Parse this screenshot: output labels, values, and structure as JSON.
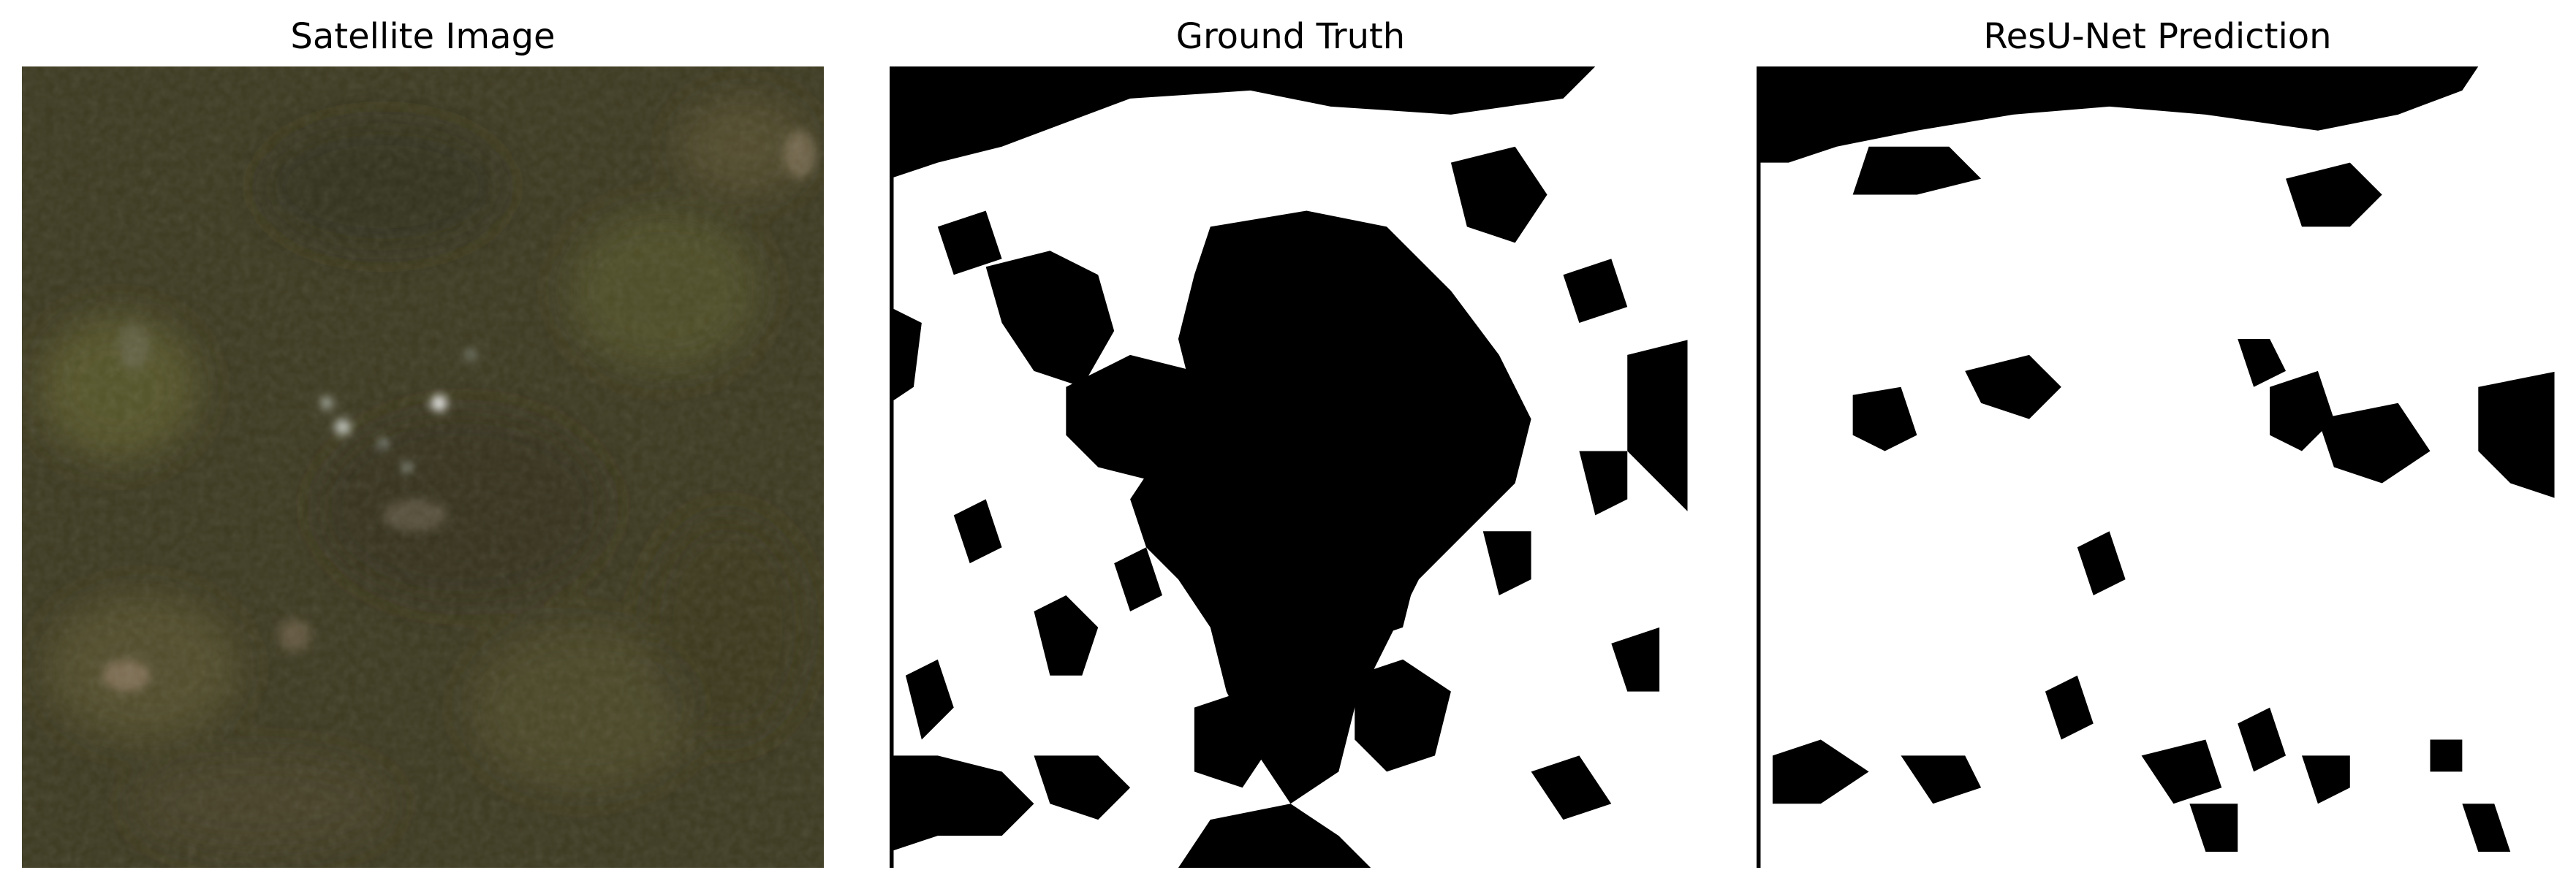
{
  "panels": {
    "satellite": {
      "title": "Satellite Image"
    },
    "ground_truth": {
      "title": "Ground Truth"
    },
    "prediction": {
      "title": "ResU-Net Prediction"
    }
  },
  "colors": {
    "background": "#ffffff",
    "mask_foreground": "#ffffff",
    "mask_background": "#000000",
    "satellite_base": "#3e3a1f"
  }
}
